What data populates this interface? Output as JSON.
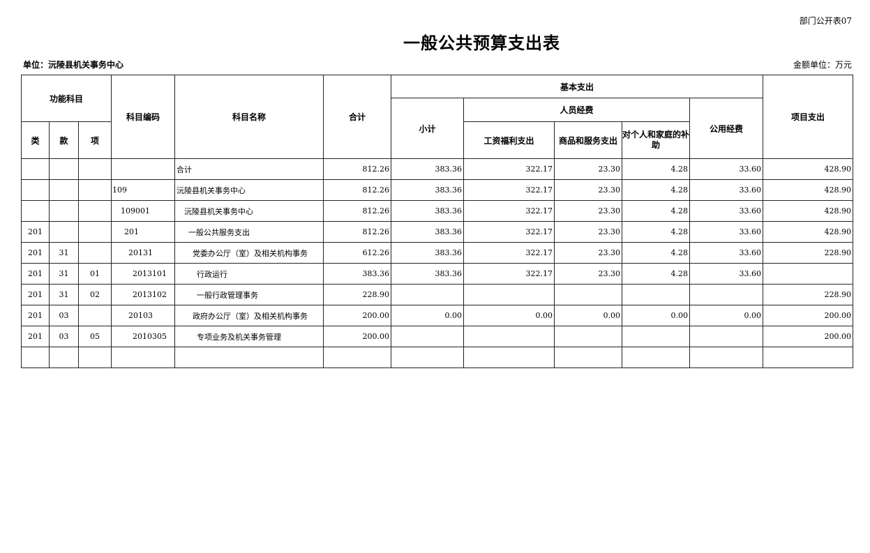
{
  "form_number": "部门公开表07",
  "title": "一般公共预算支出表",
  "unit_label": "单位：沅陵县机关事务中心",
  "amount_unit": "金额单位：万元",
  "headers": {
    "func_subject": "功能科目",
    "lei": "类",
    "kuan": "款",
    "xiang": "项",
    "code": "科目编码",
    "name": "科目名称",
    "total": "合计",
    "basic": "基本支出",
    "subtotal": "小计",
    "personnel": "人员经费",
    "wages": "工资福利支出",
    "goods": "商品和服务支出",
    "subsidy": "对个人和家庭的补助",
    "public": "公用经费",
    "project": "项目支出"
  },
  "rows": [
    {
      "lei": "",
      "kuan": "",
      "xiang": "",
      "code": "",
      "name": "合计",
      "total": "812.26",
      "subtotal": "383.36",
      "wages": "322.17",
      "goods": "23.30",
      "subsidy": "4.28",
      "public": "33.60",
      "project": "428.90"
    },
    {
      "lei": "",
      "kuan": "",
      "xiang": "",
      "code": "109",
      "name": "沅陵县机关事务中心",
      "total": "812.26",
      "subtotal": "383.36",
      "wages": "322.17",
      "goods": "23.30",
      "subsidy": "4.28",
      "public": "33.60",
      "project": "428.90"
    },
    {
      "lei": "",
      "kuan": "",
      "xiang": "",
      "code": "109001",
      "name": "沅陵县机关事务中心",
      "total": "812.26",
      "subtotal": "383.36",
      "wages": "322.17",
      "goods": "23.30",
      "subsidy": "4.28",
      "public": "33.60",
      "project": "428.90"
    },
    {
      "lei": "201",
      "kuan": "",
      "xiang": "",
      "code": "201",
      "name": "一般公共服务支出",
      "total": "812.26",
      "subtotal": "383.36",
      "wages": "322.17",
      "goods": "23.30",
      "subsidy": "4.28",
      "public": "33.60",
      "project": "428.90"
    },
    {
      "lei": "201",
      "kuan": "31",
      "xiang": "",
      "code": "20131",
      "name": "党委办公厅（室）及相关机构事务",
      "total": "612.26",
      "subtotal": "383.36",
      "wages": "322.17",
      "goods": "23.30",
      "subsidy": "4.28",
      "public": "33.60",
      "project": "228.90"
    },
    {
      "lei": "201",
      "kuan": "31",
      "xiang": "01",
      "code": "2013101",
      "name": "行政运行",
      "total": "383.36",
      "subtotal": "383.36",
      "wages": "322.17",
      "goods": "23.30",
      "subsidy": "4.28",
      "public": "33.60",
      "project": ""
    },
    {
      "lei": "201",
      "kuan": "31",
      "xiang": "02",
      "code": "2013102",
      "name": "一般行政管理事务",
      "total": "228.90",
      "subtotal": "",
      "wages": "",
      "goods": "",
      "subsidy": "",
      "public": "",
      "project": "228.90"
    },
    {
      "lei": "201",
      "kuan": "03",
      "xiang": "",
      "code": "20103",
      "name": "政府办公厅（室）及相关机构事务",
      "total": "200.00",
      "subtotal": "0.00",
      "wages": "0.00",
      "goods": "0.00",
      "subsidy": "0.00",
      "public": "0.00",
      "project": "200.00"
    },
    {
      "lei": "201",
      "kuan": "03",
      "xiang": "05",
      "code": "2010305",
      "name": "专项业务及机关事务管理",
      "total": "200.00",
      "subtotal": "",
      "wages": "",
      "goods": "",
      "subsidy": "",
      "public": "",
      "project": "200.00"
    },
    {
      "lei": "",
      "kuan": "",
      "xiang": "",
      "code": "",
      "name": "",
      "total": "",
      "subtotal": "",
      "wages": "",
      "goods": "",
      "subsidy": "",
      "public": "",
      "project": ""
    }
  ]
}
